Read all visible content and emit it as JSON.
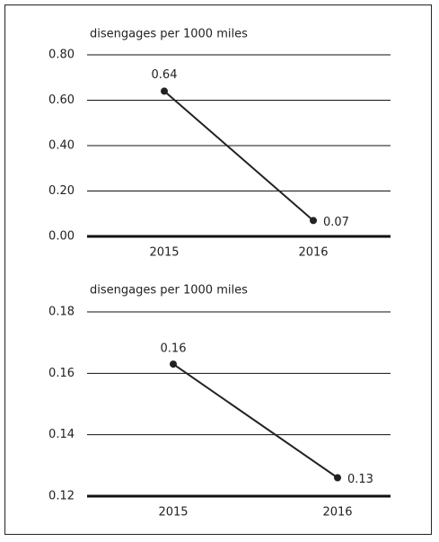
{
  "chart_data": [
    {
      "type": "line",
      "y_label": "disengages per 1000 miles",
      "categories": [
        "2015",
        "2016"
      ],
      "values": [
        0.64,
        0.07
      ],
      "color": "#222222",
      "ylim": [
        0,
        0.8
      ],
      "yticks": [
        {
          "value": 0,
          "label": "0.00"
        },
        {
          "value": 0.2,
          "label": "0.20"
        },
        {
          "value": 0.4,
          "label": "0.40"
        },
        {
          "value": 0.6,
          "label": "0.60"
        },
        {
          "value": 0.8,
          "label": "0.80"
        }
      ],
      "grid": true
    },
    {
      "type": "line",
      "y_label": "disengages per 1000 miles",
      "categories": [
        "2015",
        "2016"
      ],
      "values": [
        0.163,
        0.126
      ],
      "value_labels": [
        "0.16",
        "0.13"
      ],
      "color": "#222222",
      "ylim": [
        0.12,
        0.18
      ],
      "yticks": [
        0.12,
        0.14,
        0.16,
        0.18
      ],
      "grid": true
    }
  ]
}
